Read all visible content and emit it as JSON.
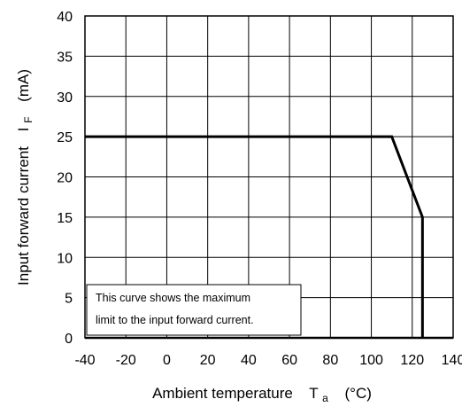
{
  "chart_data": {
    "type": "line",
    "title": "",
    "xlabel": {
      "text": "Ambient temperature",
      "symbol": "T",
      "subscript": "a",
      "unit": "(°C)"
    },
    "ylabel": {
      "text": "Input forward current",
      "symbol": "I",
      "subscript": "F",
      "unit": "(mA)"
    },
    "xlim": [
      -40,
      140
    ],
    "ylim": [
      0,
      40
    ],
    "x_ticks": [
      -40,
      -20,
      0,
      20,
      40,
      60,
      80,
      100,
      120,
      140
    ],
    "y_ticks": [
      0,
      5,
      10,
      15,
      20,
      25,
      30,
      35,
      40
    ],
    "x_gridlines": [
      -40,
      -20,
      0,
      20,
      40,
      60,
      80,
      100,
      120,
      140
    ],
    "y_gridlines": [
      0,
      5,
      10,
      15,
      20,
      25,
      30,
      35,
      40
    ],
    "grid": true,
    "legend": "none",
    "series": [
      {
        "points": [
          {
            "x": -40,
            "y": 25
          },
          {
            "x": 110,
            "y": 25
          },
          {
            "x": 125,
            "y": 15
          },
          {
            "x": 125,
            "y": 0
          }
        ]
      }
    ],
    "annotations": [
      {
        "lines": [
          "This curve shows the maximum",
          "limit to the input forward current."
        ],
        "position": "bottom-left"
      }
    ],
    "colors": {
      "line": "#000000",
      "grid": "#000000",
      "background": "#ffffff"
    }
  }
}
